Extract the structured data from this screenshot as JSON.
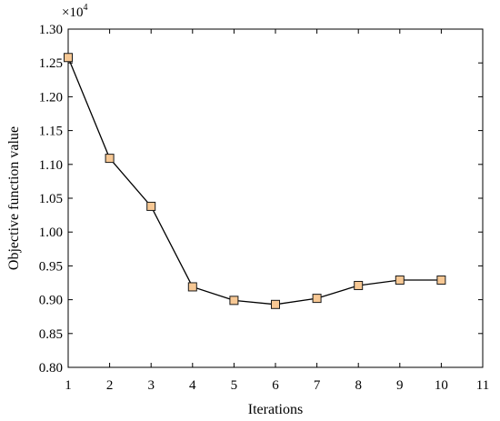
{
  "chart_data": {
    "type": "line",
    "title": "",
    "xlabel": "Iterations",
    "ylabel": "Objective function value",
    "y_multiplier": {
      "base": "×10",
      "exponent": "4"
    },
    "xlim": [
      1,
      11
    ],
    "ylim": [
      0.8,
      1.3
    ],
    "x_ticks": [
      "1",
      "2",
      "3",
      "4",
      "5",
      "6",
      "7",
      "8",
      "9",
      "10",
      "11"
    ],
    "y_ticks": [
      "0.80",
      "0.85",
      "0.90",
      "0.95",
      "1.00",
      "1.05",
      "1.10",
      "1.15",
      "1.20",
      "1.25",
      "1.30"
    ],
    "grid": false,
    "series": [
      {
        "x": [
          1,
          2,
          3,
          4,
          5,
          6,
          7,
          8,
          9,
          10
        ],
        "values": [
          1.258,
          1.109,
          1.038,
          0.919,
          0.899,
          0.893,
          0.902,
          0.921,
          0.929,
          0.929
        ],
        "marker": "square",
        "line_color": "#000000",
        "marker_fill": "#f7c894",
        "marker_edge": "#1a1a1a"
      }
    ]
  }
}
